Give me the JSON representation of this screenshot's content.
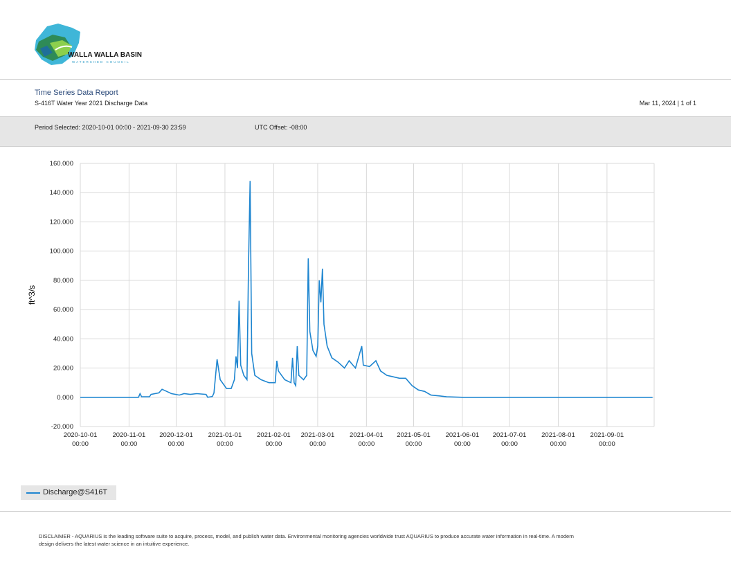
{
  "logo": {
    "name": "WALLA WALLA BASIN",
    "tagline": "WATERSHED COUNCIL"
  },
  "report": {
    "title": "Time Series Data Report",
    "subtitle": "S-416T Water Year 2021 Discharge Data",
    "date_page": "Mar 11, 2024 | 1 of 1"
  },
  "period": {
    "selected": "Period Selected: 2020-10-01 00:00 - 2021-09-30 23:59",
    "utc": "UTC Offset: -08:00"
  },
  "legend": {
    "series_label": "Discharge@S416T"
  },
  "disclaimer": "DISCLAIMER - AQUARIUS is the leading software suite to acquire, process, model, and publish water data. Environmental monitoring agencies worldwide trust AQUARIUS to produce accurate water information in real-time. A modern design delivers the latest water science in an intuitive experience.",
  "colors": {
    "series": "#1f86d0",
    "grid": "#d9d9d9",
    "band": "#e6e6e6",
    "title": "#2b4a7a"
  },
  "chart_data": {
    "type": "line",
    "ylabel": "ft^3/s",
    "ylim": [
      -20,
      160
    ],
    "xlim": [
      "2020-10-01",
      "2021-09-30"
    ],
    "grid": true,
    "legend_position": "bottom-left",
    "yticks": [
      {
        "v": 160,
        "label": "160.000"
      },
      {
        "v": 140,
        "label": "140.000"
      },
      {
        "v": 120,
        "label": "120.000"
      },
      {
        "v": 100,
        "label": "100.000"
      },
      {
        "v": 80,
        "label": "80.000"
      },
      {
        "v": 60,
        "label": "60.000"
      },
      {
        "v": 40,
        "label": "40.000"
      },
      {
        "v": 20,
        "label": "20.000"
      },
      {
        "v": 0,
        "label": "0.000"
      },
      {
        "v": -20,
        "label": "-20.000"
      }
    ],
    "xticks": [
      {
        "date": "2020-10-01",
        "l1": "2020-10-01",
        "l2": "00:00"
      },
      {
        "date": "2020-11-01",
        "l1": "2020-11-01",
        "l2": "00:00"
      },
      {
        "date": "2020-12-01",
        "l1": "2020-12-01",
        "l2": "00:00"
      },
      {
        "date": "2021-01-01",
        "l1": "2021-01-01",
        "l2": "00:00"
      },
      {
        "date": "2021-02-01",
        "l1": "2021-02-01",
        "l2": "00:00"
      },
      {
        "date": "2021-03-01",
        "l1": "2021-03-01",
        "l2": "00:00"
      },
      {
        "date": "2021-04-01",
        "l1": "2021-04-01",
        "l2": "00:00"
      },
      {
        "date": "2021-05-01",
        "l1": "2021-05-01",
        "l2": "00:00"
      },
      {
        "date": "2021-06-01",
        "l1": "2021-06-01",
        "l2": "00:00"
      },
      {
        "date": "2021-07-01",
        "l1": "2021-07-01",
        "l2": "00:00"
      },
      {
        "date": "2021-08-01",
        "l1": "2021-08-01",
        "l2": "00:00"
      },
      {
        "date": "2021-09-01",
        "l1": "2021-09-01",
        "l2": "00:00"
      }
    ],
    "series": [
      {
        "name": "Discharge@S416T",
        "points": [
          [
            "2020-10-01",
            0
          ],
          [
            "2020-11-07",
            0
          ],
          [
            "2020-11-08",
            2.5
          ],
          [
            "2020-11-09",
            0.3
          ],
          [
            "2020-11-14",
            0.3
          ],
          [
            "2020-11-15",
            2
          ],
          [
            "2020-11-20",
            3
          ],
          [
            "2020-11-22",
            5.5
          ],
          [
            "2020-11-25",
            4
          ],
          [
            "2020-11-28",
            2.5
          ],
          [
            "2020-12-03",
            1.5
          ],
          [
            "2020-12-06",
            2.5
          ],
          [
            "2020-12-10",
            2
          ],
          [
            "2020-12-14",
            2.5
          ],
          [
            "2020-12-20",
            2
          ],
          [
            "2020-12-21",
            0
          ],
          [
            "2020-12-24",
            0.5
          ],
          [
            "2020-12-25",
            3
          ],
          [
            "2020-12-27",
            26
          ],
          [
            "2020-12-29",
            12
          ],
          [
            "2021-01-02",
            6
          ],
          [
            "2021-01-05",
            6
          ],
          [
            "2021-01-07",
            12
          ],
          [
            "2021-01-08",
            28
          ],
          [
            "2021-01-09",
            20
          ],
          [
            "2021-01-10",
            66
          ],
          [
            "2021-01-11",
            22
          ],
          [
            "2021-01-13",
            15
          ],
          [
            "2021-01-15",
            12
          ],
          [
            "2021-01-16",
            90
          ],
          [
            "2021-01-17",
            148
          ],
          [
            "2021-01-18",
            30
          ],
          [
            "2021-01-20",
            15
          ],
          [
            "2021-01-24",
            12
          ],
          [
            "2021-01-29",
            10
          ],
          [
            "2021-02-02",
            10
          ],
          [
            "2021-02-03",
            25
          ],
          [
            "2021-02-04",
            18
          ],
          [
            "2021-02-08",
            12
          ],
          [
            "2021-02-12",
            10
          ],
          [
            "2021-02-13",
            27
          ],
          [
            "2021-02-14",
            10
          ],
          [
            "2021-02-15",
            8
          ],
          [
            "2021-02-16",
            35
          ],
          [
            "2021-02-17",
            15
          ],
          [
            "2021-02-20",
            12
          ],
          [
            "2021-02-22",
            15
          ],
          [
            "2021-02-23",
            95
          ],
          [
            "2021-02-24",
            45
          ],
          [
            "2021-02-26",
            32
          ],
          [
            "2021-02-28",
            28
          ],
          [
            "2021-03-01",
            35
          ],
          [
            "2021-03-02",
            80
          ],
          [
            "2021-03-03",
            65
          ],
          [
            "2021-03-04",
            88
          ],
          [
            "2021-03-05",
            50
          ],
          [
            "2021-03-07",
            35
          ],
          [
            "2021-03-10",
            27
          ],
          [
            "2021-03-14",
            24
          ],
          [
            "2021-03-18",
            20
          ],
          [
            "2021-03-21",
            25
          ],
          [
            "2021-03-25",
            20
          ],
          [
            "2021-03-29",
            35
          ],
          [
            "2021-03-30",
            22
          ],
          [
            "2021-04-03",
            21
          ],
          [
            "2021-04-07",
            25
          ],
          [
            "2021-04-10",
            18
          ],
          [
            "2021-04-14",
            15
          ],
          [
            "2021-04-18",
            14
          ],
          [
            "2021-04-22",
            13
          ],
          [
            "2021-04-26",
            13
          ],
          [
            "2021-04-30",
            8
          ],
          [
            "2021-05-04",
            5
          ],
          [
            "2021-05-08",
            4
          ],
          [
            "2021-05-12",
            1.5
          ],
          [
            "2021-05-17",
            1
          ],
          [
            "2021-05-22",
            0.3
          ],
          [
            "2021-06-01",
            0
          ],
          [
            "2021-09-30",
            0
          ]
        ]
      }
    ]
  }
}
